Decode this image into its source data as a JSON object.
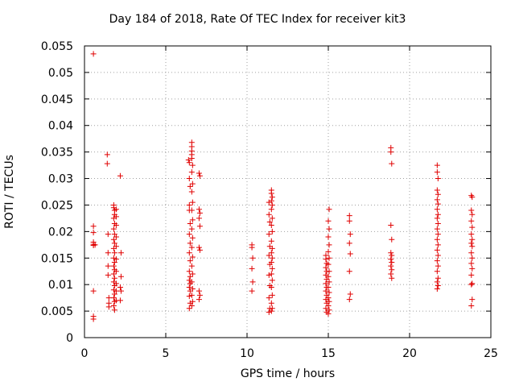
{
  "chart_data": {
    "type": "scatter",
    "title": "Day 184 of 2018, Rate Of TEC Index for receiver kit3",
    "xlabel": "GPS time / hours",
    "ylabel": "ROTI / TECUs",
    "xlim": [
      0,
      25
    ],
    "ylim": [
      0,
      0.055
    ],
    "xticks": [
      0,
      5,
      10,
      15,
      20,
      25
    ],
    "xtick_labels": [
      "0",
      "5",
      "10",
      "15",
      "20",
      "25"
    ],
    "yticks": [
      0,
      0.005,
      0.01,
      0.015,
      0.02,
      0.025,
      0.03,
      0.035,
      0.04,
      0.045,
      0.05,
      0.055
    ],
    "ytick_labels": [
      "0",
      "0.005",
      "0.01",
      "0.015",
      "0.02",
      "0.025",
      "0.03",
      "0.035",
      "0.04",
      "0.045",
      "0.05",
      "0.055"
    ],
    "grid": true,
    "marker": "+",
    "color": "#e00000",
    "series": [
      {
        "name": "ROTI",
        "points": [
          [
            0.55,
            0.0535
          ],
          [
            0.55,
            0.021
          ],
          [
            0.55,
            0.0198
          ],
          [
            0.55,
            0.018
          ],
          [
            0.55,
            0.0176
          ],
          [
            0.55,
            0.0174
          ],
          [
            0.55,
            0.0088
          ],
          [
            0.55,
            0.004
          ],
          [
            0.55,
            0.0035
          ],
          [
            0.65,
            0.0175
          ],
          [
            1.4,
            0.0345
          ],
          [
            1.4,
            0.0328
          ],
          [
            1.45,
            0.0195
          ],
          [
            1.45,
            0.016
          ],
          [
            1.45,
            0.0135
          ],
          [
            1.45,
            0.0118
          ],
          [
            1.5,
            0.0075
          ],
          [
            1.5,
            0.0065
          ],
          [
            1.5,
            0.0058
          ],
          [
            1.8,
            0.025
          ],
          [
            1.8,
            0.0245
          ],
          [
            1.85,
            0.024
          ],
          [
            1.85,
            0.0232
          ],
          [
            1.8,
            0.0225
          ],
          [
            1.85,
            0.0215
          ],
          [
            1.8,
            0.0205
          ],
          [
            1.85,
            0.0195
          ],
          [
            1.8,
            0.0185
          ],
          [
            1.85,
            0.0178
          ],
          [
            1.8,
            0.0168
          ],
          [
            1.85,
            0.016
          ],
          [
            1.8,
            0.015
          ],
          [
            1.85,
            0.0142
          ],
          [
            1.8,
            0.0135
          ],
          [
            1.85,
            0.0128
          ],
          [
            1.8,
            0.012
          ],
          [
            1.85,
            0.0112
          ],
          [
            1.8,
            0.0105
          ],
          [
            1.85,
            0.0098
          ],
          [
            1.8,
            0.009
          ],
          [
            1.85,
            0.0082
          ],
          [
            1.8,
            0.0075
          ],
          [
            1.85,
            0.0068
          ],
          [
            1.8,
            0.006
          ],
          [
            1.85,
            0.0052
          ],
          [
            1.95,
            0.0242
          ],
          [
            1.95,
            0.0228
          ],
          [
            1.95,
            0.0212
          ],
          [
            1.95,
            0.019
          ],
          [
            1.95,
            0.0172
          ],
          [
            1.95,
            0.0148
          ],
          [
            1.95,
            0.0125
          ],
          [
            1.95,
            0.0102
          ],
          [
            1.95,
            0.0088
          ],
          [
            1.95,
            0.007
          ],
          [
            2.2,
            0.0305
          ],
          [
            2.25,
            0.016
          ],
          [
            2.25,
            0.0115
          ],
          [
            2.2,
            0.0095
          ],
          [
            2.25,
            0.0088
          ],
          [
            2.2,
            0.007
          ],
          [
            6.4,
            0.0335
          ],
          [
            6.45,
            0.033
          ],
          [
            6.45,
            0.03
          ],
          [
            6.5,
            0.0285
          ],
          [
            6.45,
            0.025
          ],
          [
            6.45,
            0.024
          ],
          [
            6.5,
            0.0215
          ],
          [
            6.45,
            0.0195
          ],
          [
            6.5,
            0.0178
          ],
          [
            6.45,
            0.016
          ],
          [
            6.5,
            0.0145
          ],
          [
            6.45,
            0.0125
          ],
          [
            6.5,
            0.0115
          ],
          [
            6.45,
            0.0108
          ],
          [
            6.5,
            0.0102
          ],
          [
            6.45,
            0.0095
          ],
          [
            6.5,
            0.0088
          ],
          [
            6.45,
            0.0078
          ],
          [
            6.5,
            0.0065
          ],
          [
            6.45,
            0.0055
          ],
          [
            6.6,
            0.0368
          ],
          [
            6.6,
            0.036
          ],
          [
            6.6,
            0.0352
          ],
          [
            6.6,
            0.0345
          ],
          [
            6.6,
            0.0338
          ],
          [
            6.65,
            0.0325
          ],
          [
            6.6,
            0.0312
          ],
          [
            6.65,
            0.029
          ],
          [
            6.6,
            0.0275
          ],
          [
            6.65,
            0.0255
          ],
          [
            6.6,
            0.024
          ],
          [
            6.65,
            0.0222
          ],
          [
            6.6,
            0.0205
          ],
          [
            6.65,
            0.0188
          ],
          [
            6.6,
            0.017
          ],
          [
            6.65,
            0.0152
          ],
          [
            6.6,
            0.0135
          ],
          [
            6.65,
            0.012
          ],
          [
            6.6,
            0.0105
          ],
          [
            6.65,
            0.0092
          ],
          [
            6.6,
            0.008
          ],
          [
            6.65,
            0.0068
          ],
          [
            6.6,
            0.006
          ],
          [
            7.05,
            0.031
          ],
          [
            7.1,
            0.0305
          ],
          [
            7.05,
            0.0242
          ],
          [
            7.1,
            0.0235
          ],
          [
            7.05,
            0.0225
          ],
          [
            7.1,
            0.021
          ],
          [
            7.05,
            0.017
          ],
          [
            7.1,
            0.0165
          ],
          [
            7.05,
            0.0088
          ],
          [
            7.1,
            0.008
          ],
          [
            7.05,
            0.0072
          ],
          [
            10.3,
            0.0175
          ],
          [
            10.3,
            0.017
          ],
          [
            10.35,
            0.015
          ],
          [
            10.3,
            0.013
          ],
          [
            10.35,
            0.0105
          ],
          [
            10.3,
            0.0088
          ],
          [
            11.35,
            0.0255
          ],
          [
            11.35,
            0.0232
          ],
          [
            11.4,
            0.0218
          ],
          [
            11.35,
            0.0195
          ],
          [
            11.4,
            0.0172
          ],
          [
            11.35,
            0.0155
          ],
          [
            11.4,
            0.0138
          ],
          [
            11.35,
            0.0118
          ],
          [
            11.4,
            0.0098
          ],
          [
            11.35,
            0.0075
          ],
          [
            11.4,
            0.0055
          ],
          [
            11.35,
            0.0048
          ],
          [
            11.5,
            0.0278
          ],
          [
            11.5,
            0.0272
          ],
          [
            11.55,
            0.0265
          ],
          [
            11.5,
            0.0258
          ],
          [
            11.55,
            0.025
          ],
          [
            11.5,
            0.0242
          ],
          [
            11.55,
            0.0225
          ],
          [
            11.5,
            0.0212
          ],
          [
            11.55,
            0.02
          ],
          [
            11.5,
            0.0182
          ],
          [
            11.55,
            0.0168
          ],
          [
            11.5,
            0.016
          ],
          [
            11.55,
            0.015
          ],
          [
            11.5,
            0.0142
          ],
          [
            11.55,
            0.013
          ],
          [
            11.5,
            0.012
          ],
          [
            11.55,
            0.0108
          ],
          [
            11.5,
            0.0095
          ],
          [
            11.55,
            0.008
          ],
          [
            11.5,
            0.0065
          ],
          [
            11.55,
            0.0055
          ],
          [
            11.5,
            0.005
          ],
          [
            14.85,
            0.0155
          ],
          [
            14.85,
            0.0148
          ],
          [
            14.9,
            0.014
          ],
          [
            14.85,
            0.0132
          ],
          [
            14.9,
            0.0125
          ],
          [
            14.85,
            0.0118
          ],
          [
            14.9,
            0.011
          ],
          [
            14.85,
            0.0102
          ],
          [
            14.9,
            0.0095
          ],
          [
            14.85,
            0.0088
          ],
          [
            14.9,
            0.008
          ],
          [
            14.85,
            0.0072
          ],
          [
            14.9,
            0.0065
          ],
          [
            14.85,
            0.0055
          ],
          [
            14.9,
            0.0048
          ],
          [
            15.05,
            0.0242
          ],
          [
            15.0,
            0.022
          ],
          [
            15.05,
            0.0205
          ],
          [
            15.0,
            0.019
          ],
          [
            15.05,
            0.0175
          ],
          [
            15.0,
            0.0162
          ],
          [
            15.05,
            0.015
          ],
          [
            15.0,
            0.0138
          ],
          [
            15.05,
            0.0125
          ],
          [
            15.0,
            0.0115
          ],
          [
            15.05,
            0.0105
          ],
          [
            15.0,
            0.0095
          ],
          [
            15.05,
            0.0085
          ],
          [
            15.0,
            0.0075
          ],
          [
            15.05,
            0.0068
          ],
          [
            15.0,
            0.006
          ],
          [
            15.05,
            0.0052
          ],
          [
            15.0,
            0.0045
          ],
          [
            16.3,
            0.023
          ],
          [
            16.3,
            0.022
          ],
          [
            16.35,
            0.0195
          ],
          [
            16.3,
            0.0178
          ],
          [
            16.35,
            0.0158
          ],
          [
            16.3,
            0.0125
          ],
          [
            16.35,
            0.0082
          ],
          [
            16.3,
            0.0072
          ],
          [
            18.85,
            0.0358
          ],
          [
            18.85,
            0.035
          ],
          [
            18.9,
            0.0328
          ],
          [
            18.85,
            0.0212
          ],
          [
            18.9,
            0.0185
          ],
          [
            18.85,
            0.016
          ],
          [
            18.9,
            0.0155
          ],
          [
            18.85,
            0.0148
          ],
          [
            18.9,
            0.0142
          ],
          [
            18.85,
            0.0135
          ],
          [
            18.9,
            0.0128
          ],
          [
            18.85,
            0.012
          ],
          [
            18.9,
            0.0112
          ],
          [
            21.7,
            0.0325
          ],
          [
            21.7,
            0.0312
          ],
          [
            21.75,
            0.03
          ],
          [
            21.7,
            0.0278
          ],
          [
            21.75,
            0.027
          ],
          [
            21.7,
            0.026
          ],
          [
            21.75,
            0.0252
          ],
          [
            21.7,
            0.0242
          ],
          [
            21.75,
            0.0232
          ],
          [
            21.7,
            0.0225
          ],
          [
            21.75,
            0.0215
          ],
          [
            21.7,
            0.0205
          ],
          [
            21.75,
            0.0195
          ],
          [
            21.7,
            0.0185
          ],
          [
            21.75,
            0.0175
          ],
          [
            21.7,
            0.0165
          ],
          [
            21.75,
            0.0155
          ],
          [
            21.7,
            0.0145
          ],
          [
            21.75,
            0.0135
          ],
          [
            21.7,
            0.0125
          ],
          [
            21.75,
            0.0112
          ],
          [
            21.7,
            0.0105
          ],
          [
            21.75,
            0.0098
          ],
          [
            21.7,
            0.0092
          ],
          [
            23.8,
            0.0268
          ],
          [
            23.85,
            0.0265
          ],
          [
            23.8,
            0.024
          ],
          [
            23.85,
            0.0232
          ],
          [
            23.8,
            0.022
          ],
          [
            23.85,
            0.0208
          ],
          [
            23.8,
            0.0195
          ],
          [
            23.85,
            0.0185
          ],
          [
            23.8,
            0.0178
          ],
          [
            23.85,
            0.0172
          ],
          [
            23.8,
            0.016
          ],
          [
            23.85,
            0.015
          ],
          [
            23.8,
            0.014
          ],
          [
            23.85,
            0.013
          ],
          [
            23.8,
            0.0118
          ],
          [
            23.85,
            0.0102
          ],
          [
            23.8,
            0.01
          ],
          [
            23.85,
            0.0072
          ],
          [
            23.8,
            0.006
          ]
        ]
      }
    ]
  }
}
